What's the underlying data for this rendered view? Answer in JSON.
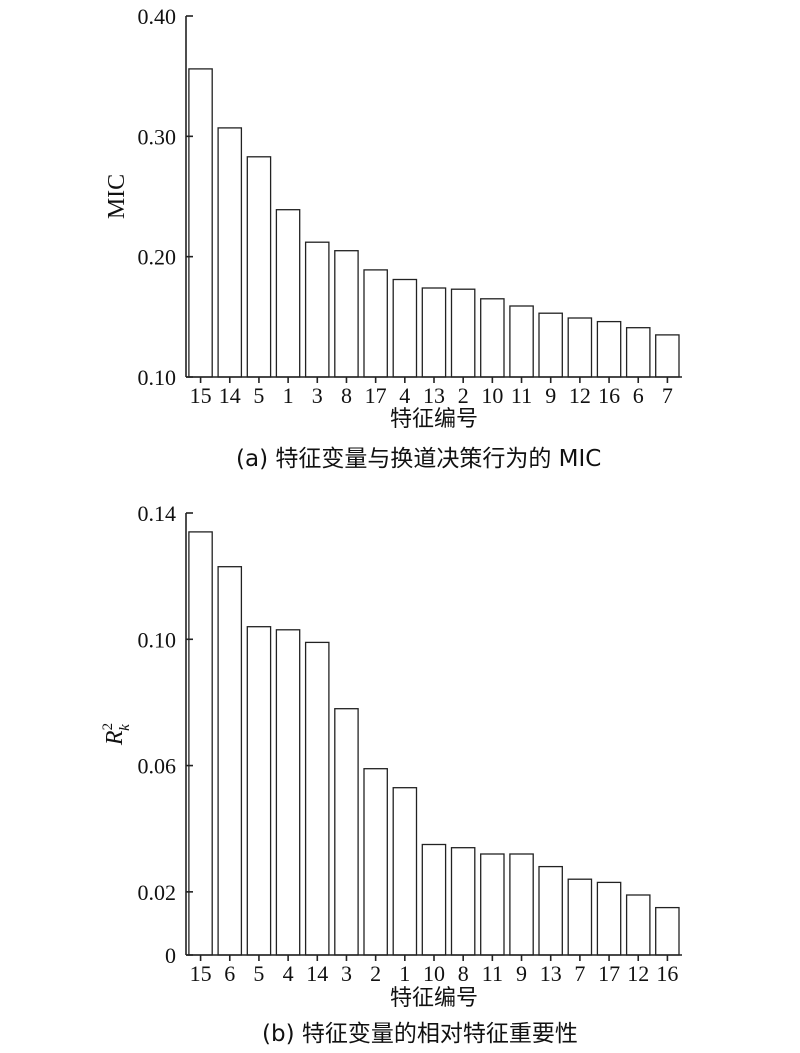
{
  "chart_data": [
    {
      "type": "bar",
      "categories": [
        "15",
        "14",
        "5",
        "1",
        "3",
        "8",
        "17",
        "4",
        "13",
        "2",
        "10",
        "11",
        "9",
        "12",
        "16",
        "6",
        "7"
      ],
      "values": [
        0.356,
        0.307,
        0.283,
        0.239,
        0.212,
        0.205,
        0.189,
        0.181,
        0.174,
        0.173,
        0.165,
        0.159,
        0.153,
        0.149,
        0.146,
        0.141,
        0.135
      ],
      "ylabel": "MIC",
      "xlabel": "特征编号",
      "caption": "(a) 特征变量与换道决策行为的 MIC",
      "ylim": [
        0.1,
        0.4
      ],
      "yticks": [
        "0.10",
        "0.20",
        "0.30",
        "0.40"
      ],
      "ytick_values": [
        0.1,
        0.2,
        0.3,
        0.4
      ]
    },
    {
      "type": "bar",
      "categories": [
        "15",
        "6",
        "5",
        "4",
        "14",
        "3",
        "2",
        "1",
        "10",
        "8",
        "11",
        "9",
        "13",
        "7",
        "17",
        "12",
        "16"
      ],
      "values": [
        0.134,
        0.123,
        0.104,
        0.103,
        0.099,
        0.078,
        0.059,
        0.053,
        0.035,
        0.034,
        0.032,
        0.032,
        0.028,
        0.024,
        0.023,
        0.019,
        0.015
      ],
      "ylabel": "R",
      "ylabel_sup": "2",
      "ylabel_sub": "k",
      "xlabel": "特征编号",
      "caption": "(b) 特征变量的相对特征重要性",
      "ylim": [
        0,
        0.14
      ],
      "yticks": [
        "0",
        "0.02",
        "0.06",
        "0.10",
        "0.14"
      ],
      "ytick_values": [
        0,
        0.02,
        0.06,
        0.1,
        0.14
      ]
    }
  ]
}
